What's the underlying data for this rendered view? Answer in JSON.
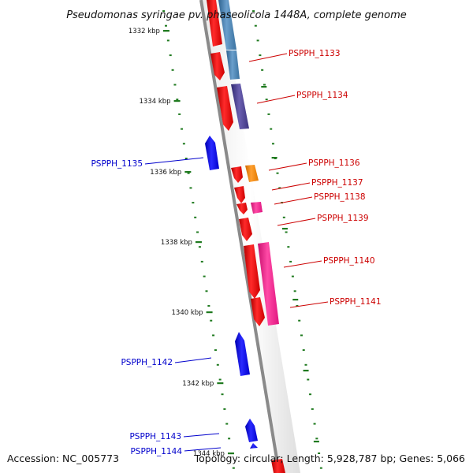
{
  "title": "Pseudomonas syringae pv. phaseolicola 1448A, complete genome",
  "accession": "Accession: NC_005773",
  "summary": "Topology: circular; Length: 5,928,787 bp; Genes: 5,066",
  "colors": {
    "backbone": "#8a8a8a",
    "tick": "#1f7a1f",
    "forward_label": "#cc0000",
    "reverse_label": "#0000cc",
    "cds_red": "#ff0000",
    "cds_blue": "#0000ff",
    "feature_steelblue": "#4682b4",
    "feature_slateblue": "#483d8b",
    "feature_orange": "#ff8c00",
    "feature_pink": "#ff1493"
  },
  "scale_labels": [
    {
      "text": "1332 kbp",
      "kbp": 1332
    },
    {
      "text": "1334 kbp",
      "kbp": 1334
    },
    {
      "text": "1336 kbp",
      "kbp": 1336
    },
    {
      "text": "1338 kbp",
      "kbp": 1338
    },
    {
      "text": "1340 kbp",
      "kbp": 1340
    },
    {
      "text": "1342 kbp",
      "kbp": 1342
    },
    {
      "text": "1344 kbp",
      "kbp": 1344
    }
  ],
  "genes": [
    {
      "label": "PSPPH_1133",
      "strand": "+"
    },
    {
      "label": "PSPPH_1134",
      "strand": "+"
    },
    {
      "label": "PSPPH_1135",
      "strand": "-"
    },
    {
      "label": "PSPPH_1136",
      "strand": "+"
    },
    {
      "label": "PSPPH_1137",
      "strand": "+"
    },
    {
      "label": "PSPPH_1138",
      "strand": "+"
    },
    {
      "label": "PSPPH_1139",
      "strand": "+"
    },
    {
      "label": "PSPPH_1140",
      "strand": "+"
    },
    {
      "label": "PSPPH_1141",
      "strand": "+"
    },
    {
      "label": "PSPPH_1142",
      "strand": "-"
    },
    {
      "label": "PSPPH_1143",
      "strand": "-"
    },
    {
      "label": "PSPPH_1144",
      "strand": "-"
    }
  ]
}
